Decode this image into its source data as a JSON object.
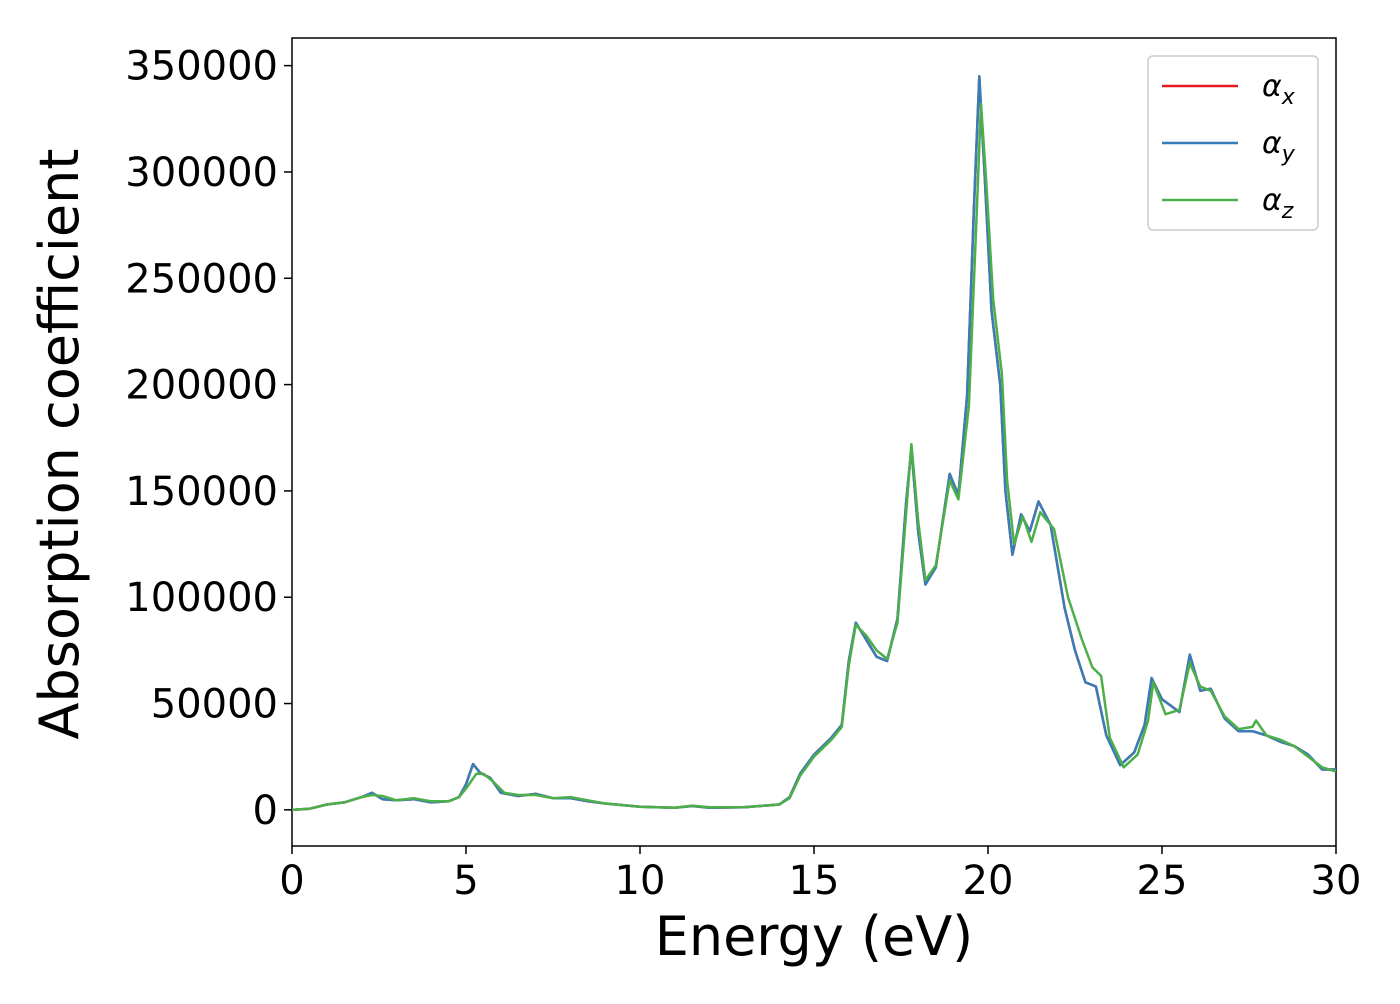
{
  "chart_data": {
    "type": "line",
    "title": "",
    "xlabel": "Energy (eV)",
    "ylabel": "Absorption coefficient",
    "xlim": [
      0,
      30
    ],
    "ylim": [
      -17000,
      363000
    ],
    "x_ticks": [
      0,
      5,
      10,
      15,
      20,
      25,
      30
    ],
    "x_tick_labels": [
      "0",
      "5",
      "10",
      "15",
      "20",
      "25",
      "30"
    ],
    "y_ticks": [
      0,
      50000,
      100000,
      150000,
      200000,
      250000,
      300000,
      350000
    ],
    "y_tick_labels": [
      "0",
      "50000",
      "100000",
      "150000",
      "200000",
      "250000",
      "300000",
      "350000"
    ],
    "grid": false,
    "legend_position": "top-right",
    "series": [
      {
        "name": "α_x",
        "legend_main": "α",
        "legend_sub": "x",
        "color": "#e41a1c",
        "points": [
          [
            0,
            0
          ],
          [
            0.5,
            500
          ],
          [
            1,
            2500
          ],
          [
            1.5,
            3500
          ],
          [
            2,
            6000
          ],
          [
            2.3,
            8000
          ],
          [
            2.6,
            5000
          ],
          [
            3,
            4500
          ],
          [
            3.5,
            5000
          ],
          [
            4,
            3500
          ],
          [
            4.5,
            4000
          ],
          [
            4.8,
            6000
          ],
          [
            5.0,
            12000
          ],
          [
            5.2,
            21500
          ],
          [
            5.4,
            17500
          ],
          [
            5.7,
            15000
          ],
          [
            6.0,
            8000
          ],
          [
            6.5,
            6500
          ],
          [
            7.0,
            7500
          ],
          [
            7.5,
            5500
          ],
          [
            8.0,
            5500
          ],
          [
            8.5,
            4000
          ],
          [
            9.0,
            3000
          ],
          [
            10.0,
            1500
          ],
          [
            11.0,
            1000
          ],
          [
            11.5,
            1800
          ],
          [
            12.0,
            1000
          ],
          [
            13.0,
            1200
          ],
          [
            14.0,
            2500
          ],
          [
            14.3,
            6000
          ],
          [
            14.6,
            17000
          ],
          [
            15.0,
            26000
          ],
          [
            15.5,
            34000
          ],
          [
            15.8,
            40000
          ],
          [
            16.0,
            70000
          ],
          [
            16.2,
            88000
          ],
          [
            16.5,
            80000
          ],
          [
            16.8,
            72000
          ],
          [
            17.1,
            70000
          ],
          [
            17.4,
            90000
          ],
          [
            17.65,
            145000
          ],
          [
            17.8,
            170000
          ],
          [
            18.0,
            130000
          ],
          [
            18.2,
            106000
          ],
          [
            18.5,
            114000
          ],
          [
            18.9,
            158000
          ],
          [
            19.15,
            148000
          ],
          [
            19.4,
            195000
          ],
          [
            19.6,
            285000
          ],
          [
            19.75,
            345000
          ],
          [
            19.9,
            300000
          ],
          [
            20.1,
            235000
          ],
          [
            20.35,
            200000
          ],
          [
            20.5,
            150000
          ],
          [
            20.7,
            120000
          ],
          [
            20.95,
            139000
          ],
          [
            21.2,
            131000
          ],
          [
            21.45,
            145000
          ],
          [
            21.8,
            134000
          ],
          [
            22.2,
            95000
          ],
          [
            22.5,
            75000
          ],
          [
            22.8,
            60000
          ],
          [
            23.1,
            58000
          ],
          [
            23.4,
            35000
          ],
          [
            23.8,
            21000
          ],
          [
            24.2,
            27000
          ],
          [
            24.5,
            40000
          ],
          [
            24.7,
            62000
          ],
          [
            25.0,
            52000
          ],
          [
            25.5,
            46000
          ],
          [
            25.8,
            73000
          ],
          [
            26.1,
            56000
          ],
          [
            26.4,
            57000
          ],
          [
            26.8,
            43000
          ],
          [
            27.2,
            37000
          ],
          [
            27.6,
            37000
          ],
          [
            28.0,
            35000
          ],
          [
            28.4,
            32000
          ],
          [
            28.8,
            30000
          ],
          [
            29.2,
            26000
          ],
          [
            29.6,
            19000
          ],
          [
            30,
            19000
          ]
        ]
      },
      {
        "name": "α_y",
        "legend_main": "α",
        "legend_sub": "y",
        "color": "#377eb8",
        "points": [
          [
            0,
            0
          ],
          [
            0.5,
            500
          ],
          [
            1,
            2500
          ],
          [
            1.5,
            3500
          ],
          [
            2,
            6000
          ],
          [
            2.3,
            8000
          ],
          [
            2.6,
            5000
          ],
          [
            3,
            4500
          ],
          [
            3.5,
            5000
          ],
          [
            4,
            3500
          ],
          [
            4.5,
            4000
          ],
          [
            4.8,
            6000
          ],
          [
            5.0,
            12000
          ],
          [
            5.2,
            21500
          ],
          [
            5.4,
            17500
          ],
          [
            5.7,
            15000
          ],
          [
            6.0,
            8000
          ],
          [
            6.5,
            6500
          ],
          [
            7.0,
            7500
          ],
          [
            7.5,
            5500
          ],
          [
            8.0,
            5500
          ],
          [
            8.5,
            4000
          ],
          [
            9.0,
            3000
          ],
          [
            10.0,
            1500
          ],
          [
            11.0,
            1000
          ],
          [
            11.5,
            1800
          ],
          [
            12.0,
            1000
          ],
          [
            13.0,
            1200
          ],
          [
            14.0,
            2500
          ],
          [
            14.3,
            6000
          ],
          [
            14.6,
            17000
          ],
          [
            15.0,
            26000
          ],
          [
            15.5,
            34000
          ],
          [
            15.8,
            40000
          ],
          [
            16.0,
            70000
          ],
          [
            16.2,
            88000
          ],
          [
            16.5,
            80000
          ],
          [
            16.8,
            72000
          ],
          [
            17.1,
            70000
          ],
          [
            17.4,
            90000
          ],
          [
            17.65,
            145000
          ],
          [
            17.8,
            170000
          ],
          [
            18.0,
            130000
          ],
          [
            18.2,
            106000
          ],
          [
            18.5,
            114000
          ],
          [
            18.9,
            158000
          ],
          [
            19.15,
            148000
          ],
          [
            19.4,
            195000
          ],
          [
            19.6,
            285000
          ],
          [
            19.75,
            345000
          ],
          [
            19.9,
            300000
          ],
          [
            20.1,
            235000
          ],
          [
            20.35,
            200000
          ],
          [
            20.5,
            150000
          ],
          [
            20.7,
            120000
          ],
          [
            20.95,
            139000
          ],
          [
            21.2,
            131000
          ],
          [
            21.45,
            145000
          ],
          [
            21.8,
            134000
          ],
          [
            22.2,
            95000
          ],
          [
            22.5,
            75000
          ],
          [
            22.8,
            60000
          ],
          [
            23.1,
            58000
          ],
          [
            23.4,
            35000
          ],
          [
            23.8,
            21000
          ],
          [
            24.2,
            27000
          ],
          [
            24.5,
            40000
          ],
          [
            24.7,
            62000
          ],
          [
            25.0,
            52000
          ],
          [
            25.5,
            46000
          ],
          [
            25.8,
            73000
          ],
          [
            26.1,
            56000
          ],
          [
            26.4,
            57000
          ],
          [
            26.8,
            43000
          ],
          [
            27.2,
            37000
          ],
          [
            27.6,
            37000
          ],
          [
            28.0,
            35000
          ],
          [
            28.4,
            32000
          ],
          [
            28.8,
            30000
          ],
          [
            29.2,
            26000
          ],
          [
            29.6,
            19000
          ],
          [
            30,
            19000
          ]
        ]
      },
      {
        "name": "α_z",
        "legend_main": "α",
        "legend_sub": "z",
        "color": "#4daf4a",
        "points": [
          [
            0,
            0
          ],
          [
            0.5,
            500
          ],
          [
            1,
            2500
          ],
          [
            1.5,
            3500
          ],
          [
            2,
            6000
          ],
          [
            2.3,
            7000
          ],
          [
            2.6,
            6500
          ],
          [
            3,
            4500
          ],
          [
            3.5,
            5500
          ],
          [
            4,
            4000
          ],
          [
            4.5,
            4000
          ],
          [
            4.8,
            6000
          ],
          [
            5.0,
            10000
          ],
          [
            5.3,
            17000
          ],
          [
            5.5,
            17000
          ],
          [
            5.8,
            13000
          ],
          [
            6.1,
            8000
          ],
          [
            6.5,
            7000
          ],
          [
            7.0,
            7000
          ],
          [
            7.5,
            5500
          ],
          [
            8.0,
            6000
          ],
          [
            8.5,
            4500
          ],
          [
            9.0,
            3000
          ],
          [
            10.0,
            1500
          ],
          [
            11.0,
            1000
          ],
          [
            11.5,
            2000
          ],
          [
            12.0,
            1200
          ],
          [
            13.0,
            1300
          ],
          [
            14.0,
            2500
          ],
          [
            14.3,
            5500
          ],
          [
            14.6,
            16000
          ],
          [
            15.0,
            25000
          ],
          [
            15.5,
            33000
          ],
          [
            15.8,
            39000
          ],
          [
            16.0,
            68000
          ],
          [
            16.2,
            87000
          ],
          [
            16.5,
            82000
          ],
          [
            16.8,
            75000
          ],
          [
            17.1,
            71000
          ],
          [
            17.4,
            88000
          ],
          [
            17.65,
            140000
          ],
          [
            17.8,
            172000
          ],
          [
            18.0,
            135000
          ],
          [
            18.2,
            108000
          ],
          [
            18.5,
            115000
          ],
          [
            18.9,
            155000
          ],
          [
            19.15,
            146000
          ],
          [
            19.45,
            190000
          ],
          [
            19.65,
            270000
          ],
          [
            19.8,
            332000
          ],
          [
            19.95,
            295000
          ],
          [
            20.15,
            240000
          ],
          [
            20.4,
            205000
          ],
          [
            20.55,
            155000
          ],
          [
            20.75,
            125000
          ],
          [
            21.0,
            138000
          ],
          [
            21.25,
            126000
          ],
          [
            21.5,
            140000
          ],
          [
            21.9,
            132000
          ],
          [
            22.3,
            100000
          ],
          [
            22.7,
            80000
          ],
          [
            23.0,
            67000
          ],
          [
            23.25,
            63000
          ],
          [
            23.5,
            34000
          ],
          [
            23.9,
            20000
          ],
          [
            24.3,
            26000
          ],
          [
            24.6,
            42000
          ],
          [
            24.75,
            60000
          ],
          [
            25.1,
            45000
          ],
          [
            25.5,
            47000
          ],
          [
            25.8,
            69000
          ],
          [
            26.1,
            58000
          ],
          [
            26.4,
            56000
          ],
          [
            26.8,
            44000
          ],
          [
            27.2,
            38000
          ],
          [
            27.6,
            39000
          ],
          [
            27.7,
            42000
          ],
          [
            28.0,
            35000
          ],
          [
            28.4,
            33000
          ],
          [
            28.8,
            30000
          ],
          [
            29.2,
            25000
          ],
          [
            29.6,
            20000
          ],
          [
            30,
            18000
          ]
        ]
      }
    ]
  }
}
